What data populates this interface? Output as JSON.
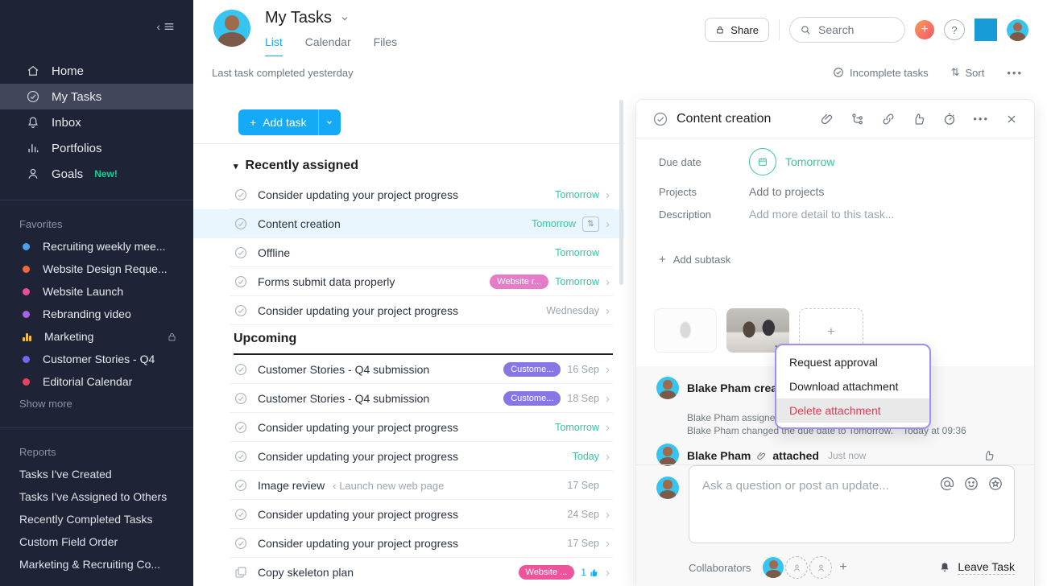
{
  "colors": {
    "accent_blue": "#14aaf5",
    "due_green": "#37c5a2",
    "danger_red": "#e8384f",
    "sidebar_bg": "#1e2336",
    "selected_row": "#e9f6fd",
    "menu_border": "#a18ef2",
    "new_badge_green": "#16cd96"
  },
  "sidebar": {
    "nav": [
      {
        "icon": "home",
        "label": "Home"
      },
      {
        "icon": "check-circle",
        "label": "My Tasks",
        "active": true
      },
      {
        "icon": "bell",
        "label": "Inbox"
      },
      {
        "icon": "bar-chart",
        "label": "Portfolios"
      },
      {
        "icon": "person",
        "label": "Goals",
        "badge": "New!"
      }
    ],
    "favorites_title": "Favorites",
    "favorites": [
      {
        "type": "dot",
        "color": "#4aa3e8",
        "label": "Recruiting weekly mee..."
      },
      {
        "type": "dot",
        "color": "#f0683c",
        "label": "Website Design Reque..."
      },
      {
        "type": "dot",
        "color": "#e84f9a",
        "label": "Website Launch"
      },
      {
        "type": "dot",
        "color": "#aa62e3",
        "label": "Rebranding video"
      },
      {
        "type": "bars",
        "color": "#eebd45",
        "label": "Marketing",
        "locked": true
      },
      {
        "type": "dot",
        "color": "#7a64f0",
        "label": "Customer Stories - Q4"
      },
      {
        "type": "dot",
        "color": "#e8435a",
        "label": "Editorial Calendar"
      }
    ],
    "show_more": "Show more",
    "reports_title": "Reports",
    "reports": [
      "Tasks I've Created",
      "Tasks I've Assigned to Others",
      "Recently Completed Tasks",
      "Custom Field Order",
      "Marketing & Recruiting Co..."
    ]
  },
  "header": {
    "title": "My Tasks",
    "tabs": [
      {
        "label": "List",
        "active": true
      },
      {
        "label": "Calendar",
        "active": false
      },
      {
        "label": "Files",
        "active": false
      }
    ],
    "share_label": "Share",
    "search_placeholder": "Search",
    "help_label": "?"
  },
  "toolbar": {
    "status": "Last task completed yesterday",
    "filter_label": "Incomplete tasks",
    "sort_label": "Sort"
  },
  "list": {
    "add_task_label": "Add task",
    "sections": [
      {
        "title": "Recently assigned",
        "collapsible": true,
        "underlined": false,
        "tasks": [
          {
            "name": "Consider updating your project progress",
            "due": "Tomorrow",
            "dueType": "soon",
            "chevron": true
          },
          {
            "name": "Content creation",
            "due": "Tomorrow",
            "dueType": "soon",
            "sortIcon": true,
            "chevron": true,
            "selected": true
          },
          {
            "name": "Offline",
            "due": "Tomorrow",
            "dueType": "soon",
            "chevron": false
          },
          {
            "name": "Forms submit data properly",
            "pill": {
              "label": "Website r...",
              "color": "#e57cc8"
            },
            "due": "Tomorrow",
            "dueType": "soon",
            "chevron": true
          },
          {
            "name": "Consider updating your project progress",
            "due": "Wednesday",
            "dueType": "later",
            "chevron": true
          }
        ]
      },
      {
        "title": "Upcoming",
        "collapsible": false,
        "underlined": true,
        "tasks": [
          {
            "name": "Customer Stories - Q4 submission",
            "pill": {
              "label": "Custome...",
              "color": "#8776e3"
            },
            "due": "16 Sep",
            "dueType": "later",
            "chevron": true
          },
          {
            "name": "Customer Stories - Q4 submission",
            "pill": {
              "label": "Custome...",
              "color": "#8776e3"
            },
            "due": "18 Sep",
            "dueType": "later",
            "chevron": true
          },
          {
            "name": "Consider updating your project progress",
            "due": "Tomorrow",
            "dueType": "soon",
            "chevron": true
          },
          {
            "name": "Consider updating your project progress",
            "due": "Today",
            "dueType": "soon",
            "chevron": true
          },
          {
            "name": "Image review",
            "suffix": "‹ Launch new web page",
            "due": "17 Sep",
            "dueType": "later",
            "chevron": false
          },
          {
            "name": "Consider updating your project progress",
            "due": "24 Sep",
            "dueType": "later",
            "chevron": true
          },
          {
            "name": "Consider updating your project progress",
            "due": "17 Sep",
            "dueType": "later",
            "chevron": true
          },
          {
            "name": "Copy skeleton plan",
            "icon": "copy",
            "pill": {
              "label": "Website ...",
              "color": "#ed549c"
            },
            "likes": "1",
            "chevron": true
          }
        ]
      }
    ]
  },
  "detail": {
    "title": "Content creation",
    "due_label": "Due date",
    "due_value": "Tomorrow",
    "projects_label": "Projects",
    "projects_value": "Add to projects",
    "description_label": "Description",
    "description_placeholder": "Add more detail to this task...",
    "add_subtask_label": "Add subtask",
    "menu": {
      "items": [
        {
          "label": "Request approval",
          "danger": false,
          "highlighted": false
        },
        {
          "label": "Download attachment",
          "danger": false,
          "highlighted": false
        },
        {
          "label": "Delete attachment",
          "danger": true,
          "highlighted": true
        }
      ]
    },
    "feed": {
      "created_line": "Blake Pham creat",
      "assigned_line": "Blake Pham assigned",
      "changed_line": "Blake Pham changed the due date to Tomorrow.",
      "changed_time": "Today at 09:36",
      "attached": {
        "name": "Blake Pham",
        "action": "attached",
        "time": "Just now"
      }
    },
    "compose_placeholder": "Ask a question or post an update...",
    "collaborators_label": "Collaborators",
    "leave_task_label": "Leave Task"
  }
}
